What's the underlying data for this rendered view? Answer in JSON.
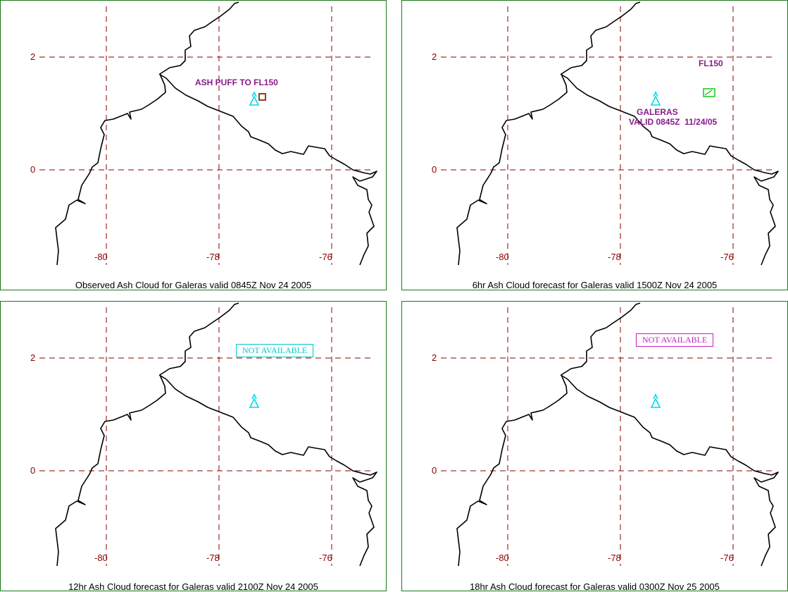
{
  "panels": [
    {
      "caption": "Observed Ash Cloud for Galeras valid 0845Z Nov 24 2005",
      "annotations": [
        "ASH PUFF TO FL150"
      ],
      "ash_polygon_color": "#8b4513",
      "volcano_icon": "volcano-icon"
    },
    {
      "caption": "6hr Ash Cloud forecast for Galeras valid 1500Z Nov 24 2005",
      "annotations": [
        "FL150",
        "GALERAS",
        "VALID 0845Z  11/24/05"
      ],
      "ash_polygon_color": "#22cc22",
      "volcano_icon": "volcano-icon"
    },
    {
      "caption": "12hr Ash Cloud forecast for Galeras valid 2100Z Nov 24 2005",
      "not_available": "NOT AVAILABLE",
      "not_available_color": "#00c8c8",
      "volcano_icon": "volcano-icon"
    },
    {
      "caption": "18hr Ash Cloud forecast for Galeras valid 0300Z Nov 25 2005",
      "not_available": "NOT AVAILABLE",
      "not_available_color": "#c020c0",
      "volcano_icon": "volcano-icon"
    }
  ],
  "axes": {
    "lat_labels": [
      "2",
      "0"
    ],
    "lon_labels": [
      "-80",
      "-78",
      "-76"
    ]
  },
  "colors": {
    "grid": "#8b0000",
    "frame": "#1a7a1a",
    "volcano": "#00d8e8",
    "annotation": "#8a1a8a"
  }
}
